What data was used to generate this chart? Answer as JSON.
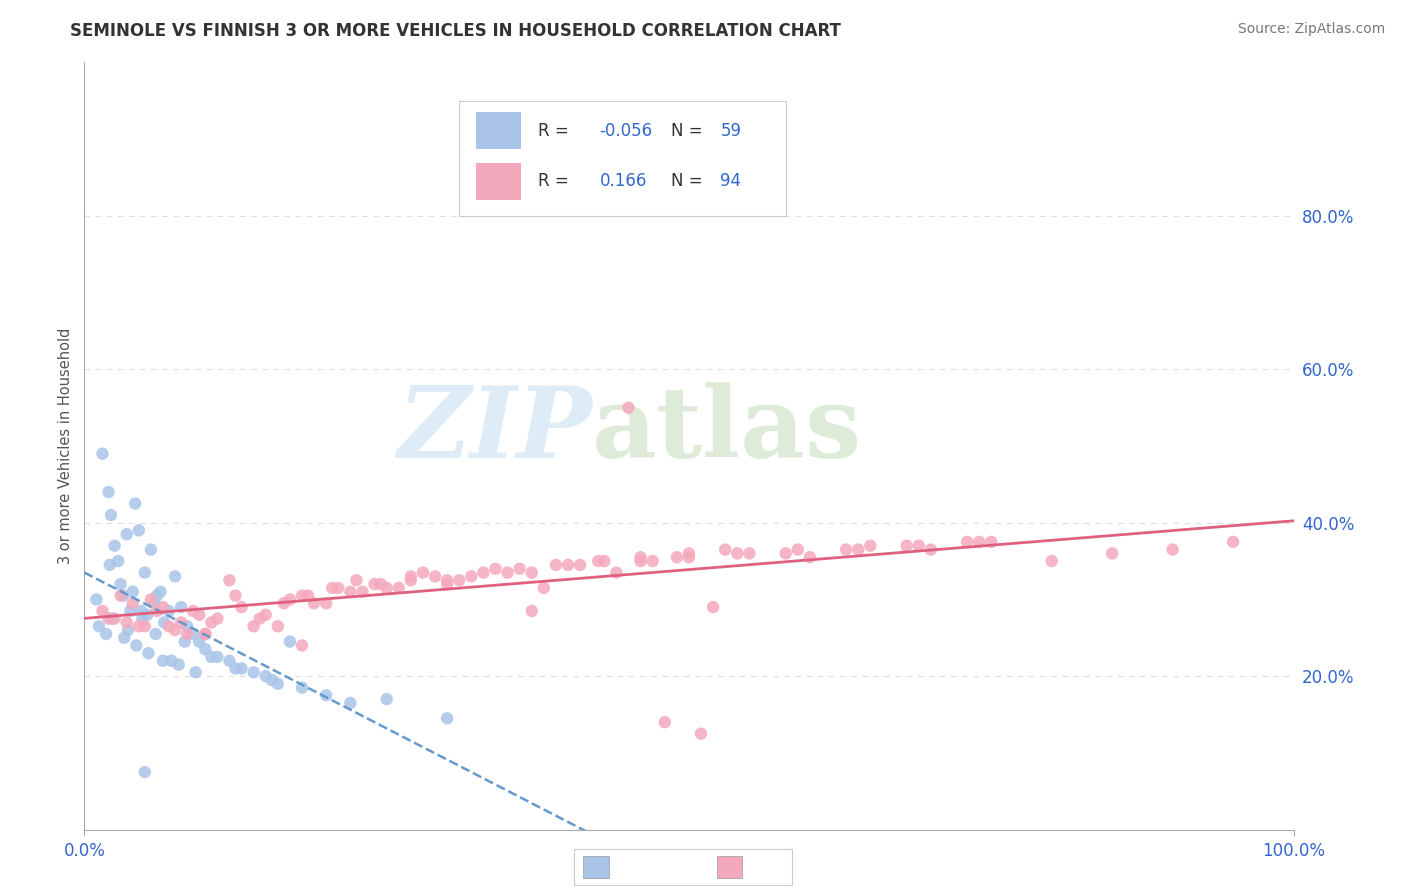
{
  "title": "SEMINOLE VS FINNISH 3 OR MORE VEHICLES IN HOUSEHOLD CORRELATION CHART",
  "source": "Source: ZipAtlas.com",
  "ylabel": "3 or more Vehicles in Household",
  "seminole_R": -0.056,
  "seminole_N": 59,
  "finns_R": 0.166,
  "finns_N": 94,
  "seminole_color": "#aac4e8",
  "finns_color": "#f4a8bc",
  "seminole_line_color": "#6699cc",
  "finns_line_color": "#e06080",
  "right_ytick_labels": [
    "20.0%",
    "40.0%",
    "60.0%",
    "80.0%"
  ],
  "right_ytick_vals": [
    20.0,
    40.0,
    60.0,
    80.0
  ],
  "watermark_zip": "ZIP",
  "watermark_atlas": "atlas",
  "grid_color": "#dddddd",
  "seminole_x": [
    1.5,
    2.0,
    2.2,
    2.5,
    2.8,
    3.0,
    3.2,
    3.5,
    3.8,
    4.0,
    4.2,
    4.5,
    4.8,
    5.0,
    5.2,
    5.5,
    5.8,
    6.0,
    6.3,
    6.6,
    7.0,
    7.5,
    8.0,
    8.5,
    9.0,
    9.5,
    10.0,
    11.0,
    12.0,
    13.0,
    14.0,
    15.0,
    16.0,
    17.0,
    18.0,
    20.0,
    22.0,
    1.0,
    1.2,
    1.8,
    2.3,
    3.3,
    4.3,
    5.3,
    6.5,
    7.8,
    9.2,
    2.1,
    3.6,
    4.7,
    5.9,
    7.2,
    8.3,
    10.5,
    12.5,
    15.5,
    25.0,
    30.0,
    5.0
  ],
  "seminole_y": [
    49.0,
    44.0,
    41.0,
    37.0,
    35.0,
    32.0,
    30.5,
    38.5,
    28.5,
    31.0,
    42.5,
    39.0,
    27.5,
    33.5,
    28.0,
    36.5,
    29.5,
    30.5,
    31.0,
    27.0,
    28.5,
    33.0,
    29.0,
    26.5,
    25.5,
    24.5,
    23.5,
    22.5,
    22.0,
    21.0,
    20.5,
    20.0,
    19.0,
    24.5,
    18.5,
    17.5,
    16.5,
    30.0,
    26.5,
    25.5,
    27.5,
    25.0,
    24.0,
    23.0,
    22.0,
    21.5,
    20.5,
    34.5,
    26.0,
    28.5,
    25.5,
    22.0,
    24.5,
    22.5,
    21.0,
    19.5,
    17.0,
    14.5,
    7.5
  ],
  "finns_x": [
    1.5,
    2.5,
    3.5,
    4.5,
    5.5,
    6.5,
    7.5,
    8.5,
    9.5,
    10.5,
    12.0,
    14.0,
    16.0,
    18.0,
    20.0,
    22.0,
    24.0,
    26.0,
    28.0,
    30.0,
    32.0,
    35.0,
    38.0,
    41.0,
    44.0,
    47.0,
    50.0,
    55.0,
    60.0,
    65.0,
    70.0,
    75.0,
    80.0,
    85.0,
    90.0,
    95.0,
    3.0,
    5.0,
    7.0,
    9.0,
    11.0,
    13.0,
    15.0,
    17.0,
    19.0,
    21.0,
    23.0,
    25.0,
    27.0,
    29.0,
    31.0,
    34.0,
    37.0,
    40.0,
    43.0,
    46.0,
    49.0,
    53.0,
    58.0,
    63.0,
    68.0,
    73.0,
    2.0,
    4.0,
    6.0,
    8.0,
    10.0,
    12.5,
    14.5,
    16.5,
    18.5,
    20.5,
    22.5,
    24.5,
    27.0,
    30.0,
    33.0,
    36.0,
    39.0,
    42.5,
    46.0,
    50.0,
    54.0,
    59.0,
    64.0,
    69.0,
    74.0,
    45.0,
    52.0,
    37.0,
    18.0,
    10.0,
    48.0,
    51.0
  ],
  "finns_y": [
    28.5,
    27.5,
    27.0,
    26.5,
    30.0,
    29.0,
    26.0,
    25.5,
    28.0,
    27.0,
    32.5,
    26.5,
    26.5,
    30.5,
    29.5,
    31.0,
    32.0,
    31.5,
    33.5,
    32.0,
    33.0,
    33.5,
    31.5,
    34.5,
    33.5,
    35.0,
    35.5,
    36.0,
    35.5,
    37.0,
    36.5,
    37.5,
    35.0,
    36.0,
    36.5,
    37.5,
    30.5,
    26.5,
    26.5,
    28.5,
    27.5,
    29.0,
    28.0,
    30.0,
    29.5,
    31.5,
    31.0,
    31.5,
    32.5,
    33.0,
    32.5,
    34.0,
    33.5,
    34.5,
    35.0,
    35.0,
    35.5,
    36.5,
    36.0,
    36.5,
    37.0,
    37.5,
    27.5,
    29.5,
    28.5,
    27.0,
    25.5,
    30.5,
    27.5,
    29.5,
    30.5,
    31.5,
    32.5,
    32.0,
    33.0,
    32.5,
    33.5,
    34.0,
    34.5,
    35.0,
    35.5,
    36.0,
    36.0,
    36.5,
    36.5,
    37.0,
    37.5,
    55.0,
    29.0,
    28.5,
    24.0,
    25.5,
    14.0,
    12.5
  ]
}
